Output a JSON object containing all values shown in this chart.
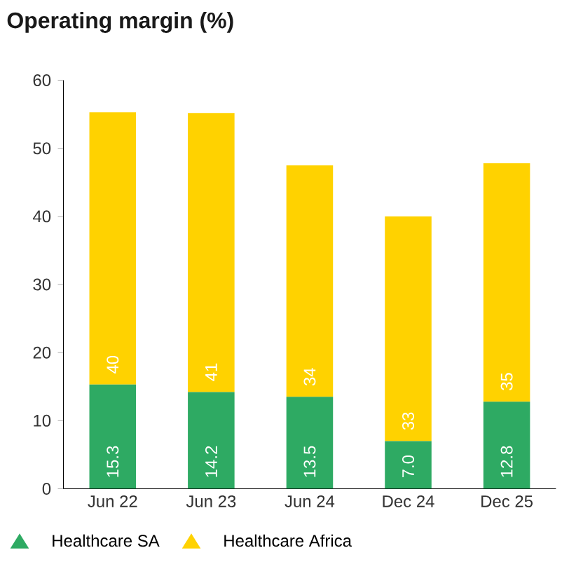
{
  "chart_data": {
    "type": "bar",
    "title": "Operating margin (%)",
    "stacked": true,
    "categories": [
      "Jun 22",
      "Jun 23",
      "Jun 24",
      "Dec 24",
      "Dec 25"
    ],
    "series": [
      {
        "name": "Healthcare SA",
        "color": "#2eaa63",
        "values": [
          15.3,
          14.2,
          13.5,
          7.0,
          12.8
        ],
        "value_labels": [
          "15.3",
          "14.2",
          "13.5",
          "7.0",
          "12.8"
        ]
      },
      {
        "name": "Healthcare Africa",
        "color": "#ffd200",
        "values": [
          40,
          41,
          34,
          33,
          35
        ],
        "value_labels": [
          "40",
          "41",
          "34",
          "33",
          "35"
        ]
      }
    ],
    "ylim": [
      0,
      60
    ],
    "yticks": [
      0,
      10,
      20,
      30,
      40,
      50,
      60
    ],
    "legend": "bottom",
    "marker": "triangle"
  }
}
